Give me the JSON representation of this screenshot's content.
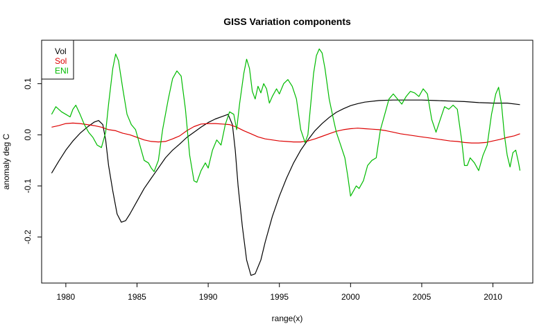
{
  "chart_data": {
    "type": "line",
    "title": "GISS Variation components",
    "xlabel": "range(x)",
    "ylabel": "anomaly deg C",
    "xlim": [
      1978.3,
      2012.8
    ],
    "ylim": [
      -0.29,
      0.185
    ],
    "x_ticks": [
      1980,
      1985,
      1990,
      1995,
      2000,
      2005,
      2010
    ],
    "x_tick_labels": [
      "1980",
      "1985",
      "1990",
      "1995",
      "2000",
      "2005",
      "2010"
    ],
    "y_ticks": [
      -0.2,
      -0.1,
      0.0,
      0.1
    ],
    "y_tick_labels": [
      "-0.2",
      "-0.1",
      "0.0",
      "0.1"
    ],
    "grid": false,
    "legend_position": "top-left",
    "series": [
      {
        "name": "Vol",
        "color": "#000000",
        "points": [
          [
            1979.0,
            -0.075
          ],
          [
            1979.5,
            -0.052
          ],
          [
            1980.0,
            -0.03
          ],
          [
            1980.5,
            -0.012
          ],
          [
            1981.0,
            0.003
          ],
          [
            1981.5,
            0.015
          ],
          [
            1982.0,
            0.025
          ],
          [
            1982.3,
            0.028
          ],
          [
            1982.6,
            0.02
          ],
          [
            1982.8,
            -0.01
          ],
          [
            1983.0,
            -0.06
          ],
          [
            1983.3,
            -0.11
          ],
          [
            1983.6,
            -0.155
          ],
          [
            1983.9,
            -0.171
          ],
          [
            1984.2,
            -0.168
          ],
          [
            1984.5,
            -0.155
          ],
          [
            1985.0,
            -0.13
          ],
          [
            1985.5,
            -0.105
          ],
          [
            1986.0,
            -0.085
          ],
          [
            1986.5,
            -0.065
          ],
          [
            1987.0,
            -0.045
          ],
          [
            1987.5,
            -0.03
          ],
          [
            1988.0,
            -0.018
          ],
          [
            1988.5,
            -0.005
          ],
          [
            1989.0,
            0.005
          ],
          [
            1989.5,
            0.015
          ],
          [
            1990.0,
            0.024
          ],
          [
            1990.5,
            0.031
          ],
          [
            1991.0,
            0.036
          ],
          [
            1991.4,
            0.04
          ],
          [
            1991.7,
            0.02
          ],
          [
            1991.9,
            -0.03
          ],
          [
            1992.1,
            -0.1
          ],
          [
            1992.4,
            -0.18
          ],
          [
            1992.7,
            -0.245
          ],
          [
            1993.0,
            -0.275
          ],
          [
            1993.3,
            -0.272
          ],
          [
            1993.7,
            -0.245
          ],
          [
            1994.0,
            -0.21
          ],
          [
            1994.5,
            -0.16
          ],
          [
            1995.0,
            -0.12
          ],
          [
            1995.5,
            -0.085
          ],
          [
            1996.0,
            -0.055
          ],
          [
            1996.5,
            -0.03
          ],
          [
            1997.0,
            -0.01
          ],
          [
            1997.5,
            0.008
          ],
          [
            1998.0,
            0.022
          ],
          [
            1998.5,
            0.034
          ],
          [
            1999.0,
            0.044
          ],
          [
            1999.5,
            0.051
          ],
          [
            2000.0,
            0.057
          ],
          [
            2000.5,
            0.061
          ],
          [
            2001.0,
            0.064
          ],
          [
            2002.0,
            0.067
          ],
          [
            2003.0,
            0.068
          ],
          [
            2004.0,
            0.068
          ],
          [
            2005.0,
            0.068
          ],
          [
            2006.0,
            0.067
          ],
          [
            2007.0,
            0.066
          ],
          [
            2008.0,
            0.065
          ],
          [
            2009.0,
            0.063
          ],
          [
            2010.0,
            0.062
          ],
          [
            2011.0,
            0.062
          ],
          [
            2011.9,
            0.059
          ]
        ]
      },
      {
        "name": "Sol",
        "color": "#dd0000",
        "points": [
          [
            1979.0,
            0.015
          ],
          [
            1979.5,
            0.018
          ],
          [
            1980.0,
            0.022
          ],
          [
            1980.5,
            0.023
          ],
          [
            1981.0,
            0.022
          ],
          [
            1981.5,
            0.02
          ],
          [
            1982.0,
            0.018
          ],
          [
            1982.5,
            0.015
          ],
          [
            1983.0,
            0.01
          ],
          [
            1983.5,
            0.008
          ],
          [
            1984.0,
            0.003
          ],
          [
            1984.5,
            0.0
          ],
          [
            1985.0,
            -0.005
          ],
          [
            1985.5,
            -0.01
          ],
          [
            1986.0,
            -0.013
          ],
          [
            1986.5,
            -0.014
          ],
          [
            1987.0,
            -0.013
          ],
          [
            1987.5,
            -0.008
          ],
          [
            1988.0,
            -0.002
          ],
          [
            1988.5,
            0.008
          ],
          [
            1989.0,
            0.016
          ],
          [
            1989.5,
            0.021
          ],
          [
            1990.0,
            0.022
          ],
          [
            1990.5,
            0.022
          ],
          [
            1991.0,
            0.021
          ],
          [
            1991.5,
            0.02
          ],
          [
            1992.0,
            0.015
          ],
          [
            1992.5,
            0.008
          ],
          [
            1993.0,
            0.002
          ],
          [
            1993.5,
            -0.004
          ],
          [
            1994.0,
            -0.008
          ],
          [
            1994.5,
            -0.01
          ],
          [
            1995.0,
            -0.012
          ],
          [
            1995.5,
            -0.013
          ],
          [
            1996.0,
            -0.014
          ],
          [
            1996.5,
            -0.014
          ],
          [
            1997.0,
            -0.012
          ],
          [
            1997.5,
            -0.008
          ],
          [
            1998.0,
            -0.003
          ],
          [
            1998.5,
            0.002
          ],
          [
            1999.0,
            0.007
          ],
          [
            1999.5,
            0.01
          ],
          [
            2000.0,
            0.012
          ],
          [
            2000.5,
            0.013
          ],
          [
            2001.0,
            0.012
          ],
          [
            2001.5,
            0.011
          ],
          [
            2002.0,
            0.01
          ],
          [
            2002.5,
            0.008
          ],
          [
            2003.0,
            0.005
          ],
          [
            2003.5,
            0.002
          ],
          [
            2004.0,
            0.0
          ],
          [
            2004.5,
            -0.002
          ],
          [
            2005.0,
            -0.004
          ],
          [
            2005.5,
            -0.006
          ],
          [
            2006.0,
            -0.008
          ],
          [
            2006.5,
            -0.01
          ],
          [
            2007.0,
            -0.012
          ],
          [
            2007.5,
            -0.013
          ],
          [
            2008.0,
            -0.015
          ],
          [
            2008.5,
            -0.016
          ],
          [
            2009.0,
            -0.016
          ],
          [
            2009.5,
            -0.015
          ],
          [
            2010.0,
            -0.012
          ],
          [
            2010.5,
            -0.009
          ],
          [
            2011.0,
            -0.005
          ],
          [
            2011.5,
            -0.002
          ],
          [
            2011.9,
            0.002
          ]
        ]
      },
      {
        "name": "ENI",
        "color": "#00bb00",
        "points": [
          [
            1979.0,
            0.04
          ],
          [
            1979.3,
            0.055
          ],
          [
            1979.7,
            0.045
          ],
          [
            1980.0,
            0.04
          ],
          [
            1980.3,
            0.035
          ],
          [
            1980.5,
            0.05
          ],
          [
            1980.7,
            0.058
          ],
          [
            1981.0,
            0.04
          ],
          [
            1981.3,
            0.02
          ],
          [
            1981.6,
            0.005
          ],
          [
            1981.9,
            -0.005
          ],
          [
            1982.2,
            -0.02
          ],
          [
            1982.5,
            -0.025
          ],
          [
            1982.8,
            0.005
          ],
          [
            1983.0,
            0.06
          ],
          [
            1983.3,
            0.13
          ],
          [
            1983.5,
            0.158
          ],
          [
            1983.7,
            0.145
          ],
          [
            1984.0,
            0.09
          ],
          [
            1984.3,
            0.04
          ],
          [
            1984.6,
            0.02
          ],
          [
            1984.9,
            0.01
          ],
          [
            1985.2,
            -0.02
          ],
          [
            1985.5,
            -0.05
          ],
          [
            1985.8,
            -0.055
          ],
          [
            1986.0,
            -0.065
          ],
          [
            1986.2,
            -0.072
          ],
          [
            1986.5,
            -0.05
          ],
          [
            1986.8,
            0.01
          ],
          [
            1987.2,
            0.07
          ],
          [
            1987.5,
            0.11
          ],
          [
            1987.8,
            0.125
          ],
          [
            1988.1,
            0.115
          ],
          [
            1988.4,
            0.05
          ],
          [
            1988.7,
            -0.04
          ],
          [
            1989.0,
            -0.09
          ],
          [
            1989.2,
            -0.093
          ],
          [
            1989.5,
            -0.07
          ],
          [
            1989.8,
            -0.055
          ],
          [
            1990.0,
            -0.065
          ],
          [
            1990.3,
            -0.03
          ],
          [
            1990.6,
            -0.01
          ],
          [
            1990.9,
            -0.02
          ],
          [
            1991.2,
            0.02
          ],
          [
            1991.5,
            0.045
          ],
          [
            1991.8,
            0.04
          ],
          [
            1992.0,
            0.01
          ],
          [
            1992.2,
            0.06
          ],
          [
            1992.5,
            0.12
          ],
          [
            1992.7,
            0.148
          ],
          [
            1992.9,
            0.13
          ],
          [
            1993.1,
            0.085
          ],
          [
            1993.3,
            0.07
          ],
          [
            1993.5,
            0.095
          ],
          [
            1993.7,
            0.082
          ],
          [
            1993.9,
            0.1
          ],
          [
            1994.1,
            0.09
          ],
          [
            1994.3,
            0.062
          ],
          [
            1994.5,
            0.075
          ],
          [
            1994.8,
            0.09
          ],
          [
            1995.0,
            0.08
          ],
          [
            1995.3,
            0.1
          ],
          [
            1995.6,
            0.108
          ],
          [
            1995.9,
            0.095
          ],
          [
            1996.2,
            0.07
          ],
          [
            1996.5,
            0.01
          ],
          [
            1996.8,
            -0.015
          ],
          [
            1997.0,
            0.0
          ],
          [
            1997.2,
            0.06
          ],
          [
            1997.4,
            0.12
          ],
          [
            1997.6,
            0.155
          ],
          [
            1997.8,
            0.168
          ],
          [
            1998.0,
            0.16
          ],
          [
            1998.2,
            0.13
          ],
          [
            1998.5,
            0.07
          ],
          [
            1998.8,
            0.03
          ],
          [
            1999.0,
            0.005
          ],
          [
            1999.3,
            -0.02
          ],
          [
            1999.6,
            -0.045
          ],
          [
            1999.8,
            -0.08
          ],
          [
            2000.0,
            -0.12
          ],
          [
            2000.2,
            -0.11
          ],
          [
            2000.4,
            -0.1
          ],
          [
            2000.6,
            -0.105
          ],
          [
            2000.9,
            -0.09
          ],
          [
            2001.2,
            -0.06
          ],
          [
            2001.5,
            -0.05
          ],
          [
            2001.8,
            -0.045
          ],
          [
            2002.1,
            0.01
          ],
          [
            2002.4,
            0.04
          ],
          [
            2002.7,
            0.07
          ],
          [
            2003.0,
            0.08
          ],
          [
            2003.3,
            0.07
          ],
          [
            2003.6,
            0.06
          ],
          [
            2003.9,
            0.075
          ],
          [
            2004.2,
            0.085
          ],
          [
            2004.5,
            0.082
          ],
          [
            2004.8,
            0.075
          ],
          [
            2005.1,
            0.09
          ],
          [
            2005.4,
            0.08
          ],
          [
            2005.7,
            0.03
          ],
          [
            2006.0,
            0.005
          ],
          [
            2006.3,
            0.03
          ],
          [
            2006.6,
            0.055
          ],
          [
            2006.9,
            0.05
          ],
          [
            2007.2,
            0.058
          ],
          [
            2007.5,
            0.05
          ],
          [
            2007.8,
            -0.01
          ],
          [
            2008.0,
            -0.06
          ],
          [
            2008.2,
            -0.06
          ],
          [
            2008.4,
            -0.045
          ],
          [
            2008.7,
            -0.055
          ],
          [
            2009.0,
            -0.07
          ],
          [
            2009.3,
            -0.04
          ],
          [
            2009.6,
            -0.02
          ],
          [
            2009.9,
            0.04
          ],
          [
            2010.2,
            0.08
          ],
          [
            2010.4,
            0.093
          ],
          [
            2010.6,
            0.06
          ],
          [
            2010.8,
            0.0
          ],
          [
            2011.0,
            -0.04
          ],
          [
            2011.2,
            -0.063
          ],
          [
            2011.4,
            -0.035
          ],
          [
            2011.6,
            -0.03
          ],
          [
            2011.8,
            -0.055
          ],
          [
            2011.9,
            -0.07
          ]
        ]
      }
    ]
  }
}
